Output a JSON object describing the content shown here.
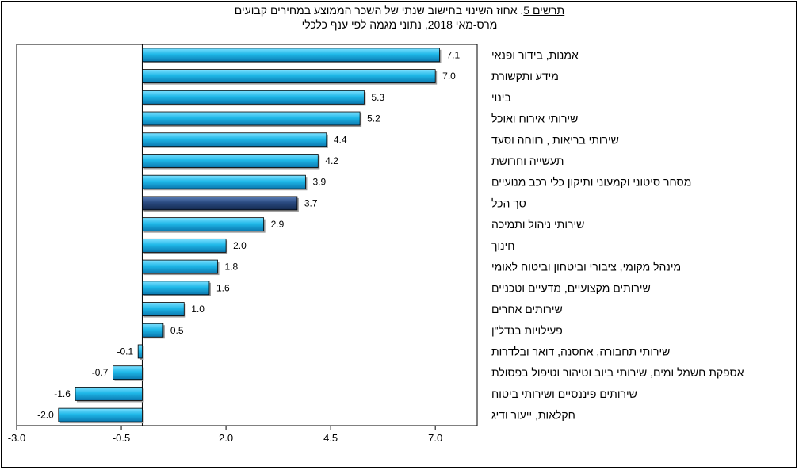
{
  "title": {
    "figure_label": "תרשים 5",
    "main": ". אחוז השינוי בחישוב שנתי של השכר הממוצע במחירים קבועים",
    "subtitle": "מרס-מאי 2018, נתוני מגמה לפי ענף כלכלי"
  },
  "chart_data": {
    "type": "bar",
    "orientation": "horizontal",
    "categories": [
      "אמנות, בידור ופנאי",
      "מידע ותקשורת",
      "בינוי",
      "שירותי אירוח ואוכל",
      "שירותי בריאות , רווחה וסעד",
      "תעשייה וחרושת",
      "מסחר סיטוני וקמעוני ותיקון כלי רכב מנועיים",
      "סך הכל",
      "שירותי ניהול ותמיכה",
      "חינוך",
      "מינהל מקומי, ציבורי וביטחון וביטוח לאומי",
      "שירותים מקצועיים, מדעיים וטכניים",
      "שירותים אחרים",
      "פעילויות בנדל\"ן",
      "שירותי תחבורה, אחסנה, דואר ובלדרות",
      "אספקת חשמל ומים, שירותי ביוב וטיהור וטיפול בפסולת",
      "שירותים פיננסיים ושירותי ביטוח",
      "חקלאות, ייעור ודיג"
    ],
    "values": [
      7.1,
      7.0,
      5.3,
      5.2,
      4.4,
      4.2,
      3.9,
      3.7,
      2.9,
      2.0,
      1.8,
      1.6,
      1.0,
      0.5,
      -0.1,
      -0.7,
      -1.6,
      -2.0
    ],
    "value_labels": [
      "7.1",
      "7.0",
      "5.3",
      "5.2",
      "4.4",
      "4.2",
      "3.9",
      "3.7",
      "2.9",
      "2.0",
      "1.8",
      "1.6",
      "1.0",
      "0.5",
      "-0.1",
      "-0.7",
      "-1.6",
      "-2.0"
    ],
    "highlight_index": 7,
    "xlim": [
      -3.0,
      8.0
    ],
    "xticks": [
      -3.0,
      -0.5,
      2.0,
      4.5,
      7.0
    ],
    "xtick_labels": [
      "-3.0",
      "-0.5",
      "2.0",
      "4.5",
      "7.0"
    ],
    "grid": false,
    "colors": {
      "bar": "#1fb8e8",
      "bar_light": "#7ee0ff",
      "bar_dark": "#0a78b0",
      "highlight": "#2a4a80",
      "highlight_light": "#5c7fb8",
      "highlight_dark": "#142a50",
      "edge": "#000000"
    }
  }
}
